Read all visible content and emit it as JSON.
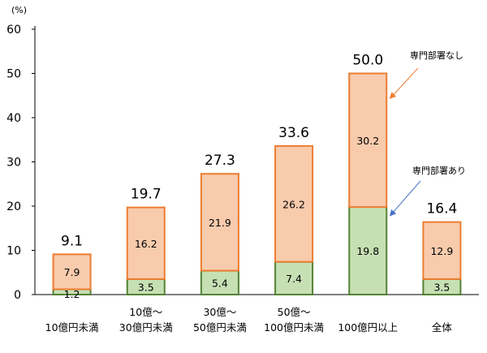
{
  "chart_data": {
    "type": "bar",
    "stacked": true,
    "unit_label": "(%)",
    "categories": [
      [
        "10億円未満"
      ],
      [
        "10億～",
        "30億円未満"
      ],
      [
        "30億～",
        "50億円未満"
      ],
      [
        "50億～",
        "100億円未満"
      ],
      [
        "100億円以上"
      ],
      [
        "全体"
      ]
    ],
    "series": [
      {
        "name": "専門部署あり",
        "values": [
          1.2,
          3.5,
          5.4,
          7.4,
          19.8,
          3.5
        ],
        "fill": "#c6e0b4",
        "stroke": "#548235"
      },
      {
        "name": "専門部署なし",
        "values": [
          7.9,
          16.2,
          21.9,
          26.2,
          30.2,
          12.9
        ],
        "fill": "#f8cbad",
        "stroke": "#ed7d31"
      }
    ],
    "totals": [
      9.1,
      19.7,
      27.3,
      33.6,
      50.0,
      16.4
    ],
    "totals_text": [
      "9.1",
      "19.7",
      "27.3",
      "33.6",
      "50.0",
      "16.4"
    ],
    "ylim": [
      0,
      60
    ],
    "yticks": [
      0,
      10,
      20,
      30,
      40,
      50,
      60
    ],
    "annotations": [
      {
        "text": "専門部署なし",
        "series": "専門部署なし",
        "category_index": 4,
        "arrow_color": "#ed7d31"
      },
      {
        "text": "専門部署あり",
        "series": "専門部署あり",
        "category_index": 4,
        "arrow_color": "#4472c4"
      }
    ]
  }
}
